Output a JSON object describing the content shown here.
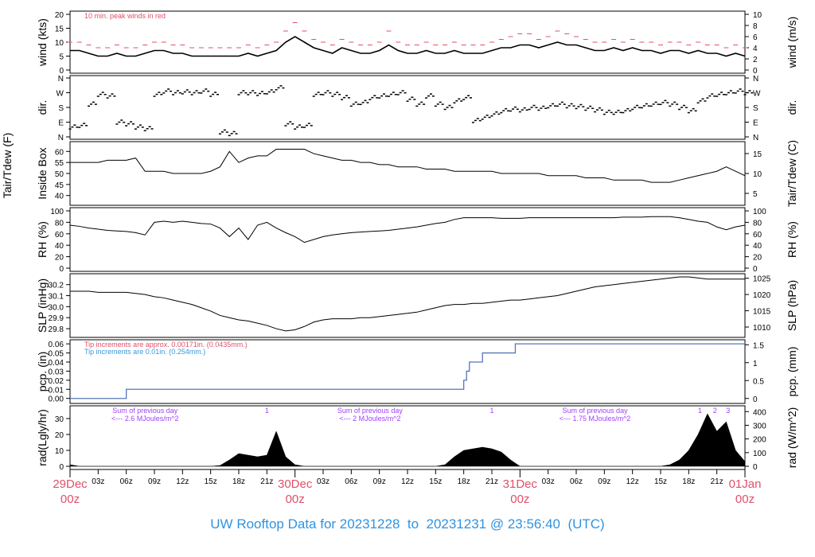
{
  "title": "UW Rooftop Data for 20231228  to  20231231 @ 23:56:40  (UTC)",
  "colors": {
    "title": "#2f93e0",
    "day_label": "#e0506a",
    "peak": "#e0506a",
    "tip_red": "#e0506a",
    "tip_blue": "#3399dd",
    "pcp_line": "#5577bb",
    "rad_note": "#a040ff"
  },
  "chart_data": {
    "type": "line",
    "hours_total": 72,
    "x_hour_ticks": [
      "",
      "03z",
      "06z",
      "09z",
      "12z",
      "15z",
      "18z",
      "21z",
      "",
      "03z",
      "06z",
      "09z",
      "12z",
      "15z",
      "18z",
      "21z",
      "",
      "03z",
      "06z",
      "09z",
      "12z",
      "15z",
      "18z",
      "21z",
      ""
    ],
    "day_labels": [
      {
        "hour": 0,
        "day": "29Dec",
        "time": "00z"
      },
      {
        "hour": 24,
        "day": "30Dec",
        "time": "00z"
      },
      {
        "hour": 48,
        "day": "31Dec",
        "time": "00z"
      },
      {
        "hour": 72,
        "day": "01Jan",
        "time": "00z"
      }
    ],
    "panels": [
      {
        "id": "wind",
        "ylabel": "wind (kts)",
        "ylabel2": "wind (m/s)",
        "ylim": [
          0,
          20
        ],
        "yticks": [
          "0",
          "5",
          "10",
          "15",
          "20"
        ],
        "ylim2": [
          0,
          10
        ],
        "yticks2": [
          "0",
          "2",
          "4",
          "6",
          "8",
          "10"
        ],
        "note": "10 min. peak winds in red",
        "series": [
          {
            "name": "wind",
            "values": [
              7,
              7,
              6,
              5,
              5,
              6,
              5,
              5,
              6,
              7,
              7,
              6,
              6,
              5,
              5,
              5,
              5,
              5,
              5,
              6,
              5,
              6,
              7,
              10,
              12,
              10,
              8,
              7,
              6,
              8,
              7,
              6,
              6,
              7,
              9,
              7,
              6,
              6,
              7,
              6,
              6,
              7,
              6,
              6,
              6,
              7,
              8,
              8,
              9,
              9,
              8,
              9,
              10,
              9,
              9,
              8,
              7,
              7,
              8,
              7,
              8,
              7,
              7,
              6,
              7,
              7,
              6,
              7,
              6,
              6,
              5,
              6,
              5
            ]
          },
          {
            "name": "peak",
            "values": [
              10,
              10,
              9,
              8,
              8,
              9,
              8,
              8,
              9,
              10,
              10,
              9,
              9,
              8,
              8,
              8,
              8,
              8,
              8,
              9,
              8,
              9,
              10,
              14,
              17,
              14,
              11,
              10,
              9,
              11,
              10,
              9,
              9,
              10,
              14,
              10,
              9,
              9,
              10,
              9,
              9,
              10,
              9,
              9,
              9,
              10,
              11,
              12,
              13,
              13,
              11,
              12,
              14,
              13,
              12,
              11,
              10,
              10,
              11,
              10,
              11,
              10,
              10,
              9,
              10,
              10,
              9,
              10,
              9,
              9,
              8,
              9,
              8
            ]
          }
        ]
      },
      {
        "id": "dir",
        "ylabel": "dir.",
        "ylabel2": "dir.",
        "ylim": [
          0,
          360
        ],
        "yticks": [
          "N",
          "E",
          "S",
          "W",
          "N"
        ],
        "yticks2": [
          "N",
          "E",
          "S",
          "W",
          "N"
        ],
        "series": [
          {
            "name": "direction_deg",
            "values": [
              60,
              70,
              200,
              260,
              250,
              90,
              80,
              60,
              50,
              260,
              280,
              270,
              275,
              270,
              280,
              260,
              30,
              20,
              270,
              270,
              265,
              275,
              300,
              80,
              60,
              70,
              260,
              270,
              260,
              240,
              200,
              210,
              240,
              250,
              260,
              270,
              230,
              200,
              250,
              200,
              180,
              220,
              240,
              100,
              120,
              140,
              160,
              170,
              165,
              180,
              175,
              190,
              200,
              190,
              185,
              175,
              165,
              150,
              150,
              160,
              180,
              190,
              200,
              210,
              200,
              180,
              160,
              220,
              250,
              260,
              270,
              280,
              270
            ]
          }
        ]
      },
      {
        "id": "temp",
        "ylabel": "Inside Box",
        "ylabel_outer": "Tair/Tdew (F)",
        "ylabel2": "Tair/Tdew (C)",
        "ylim": [
          37,
          63
        ],
        "yticks": [
          "40",
          "45",
          "50",
          "55",
          "60"
        ],
        "ylim2": [
          2.8,
          17.2
        ],
        "yticks2": [
          "5",
          "10",
          "15"
        ],
        "series": [
          {
            "name": "tair_F",
            "values": [
              55,
              55,
              55,
              55,
              56,
              56,
              56,
              57,
              51,
              51,
              51,
              50,
              50,
              50,
              50,
              51,
              53,
              60,
              55,
              57,
              58,
              58,
              61,
              61,
              61,
              61,
              59,
              58,
              57,
              56,
              56,
              55,
              55,
              54,
              54,
              53,
              53,
              53,
              52,
              52,
              52,
              51,
              51,
              51,
              51,
              51,
              50,
              50,
              50,
              50,
              50,
              49,
              49,
              49,
              49,
              48,
              48,
              48,
              47,
              47,
              47,
              47,
              46,
              46,
              46,
              47,
              48,
              49,
              50,
              51,
              53,
              51,
              49
            ]
          }
        ]
      },
      {
        "id": "rh",
        "ylabel": "RH (%)",
        "ylabel2": "RH (%)",
        "ylim": [
          0,
          100
        ],
        "yticks": [
          "0",
          "20",
          "40",
          "60",
          "80",
          "100"
        ],
        "yticks2": [
          "0",
          "20",
          "40",
          "60",
          "80",
          "100"
        ],
        "series": [
          {
            "name": "rh",
            "values": [
              75,
              73,
              70,
              68,
              66,
              65,
              64,
              62,
              58,
              80,
              82,
              80,
              82,
              80,
              78,
              77,
              70,
              55,
              70,
              50,
              75,
              80,
              70,
              62,
              55,
              45,
              50,
              55,
              58,
              60,
              62,
              63,
              64,
              65,
              66,
              68,
              70,
              72,
              75,
              78,
              80,
              85,
              88,
              88,
              88,
              88,
              87,
              87,
              87,
              88,
              88,
              88,
              88,
              88,
              88,
              88,
              88,
              88,
              88,
              89,
              89,
              89,
              90,
              90,
              90,
              88,
              85,
              82,
              80,
              72,
              67,
              72,
              75
            ]
          }
        ]
      },
      {
        "id": "slp",
        "ylabel": "SLP (inHg)",
        "ylabel2": "SLP (hPa)",
        "ylim": [
          29.75,
          30.27
        ],
        "yticks": [
          "29.8",
          "29.9",
          "30.0",
          "30.1",
          "30.2"
        ],
        "ylim2": [
          1007.8,
          1025.4
        ],
        "yticks2": [
          "1010",
          "1015",
          "1020",
          "1025"
        ],
        "series": [
          {
            "name": "slp_inHg",
            "values": [
              30.14,
              30.14,
              30.14,
              30.13,
              30.13,
              30.13,
              30.13,
              30.12,
              30.11,
              30.09,
              30.08,
              30.06,
              30.04,
              30.02,
              29.99,
              29.96,
              29.92,
              29.9,
              29.88,
              29.87,
              29.85,
              29.83,
              29.8,
              29.78,
              29.79,
              29.82,
              29.86,
              29.88,
              29.89,
              29.89,
              29.89,
              29.9,
              29.9,
              29.91,
              29.92,
              29.93,
              29.94,
              29.95,
              29.97,
              29.99,
              30.01,
              30.02,
              30.02,
              30.03,
              30.03,
              30.04,
              30.05,
              30.06,
              30.06,
              30.07,
              30.08,
              30.09,
              30.1,
              30.12,
              30.14,
              30.16,
              30.18,
              30.19,
              30.2,
              30.21,
              30.22,
              30.23,
              30.24,
              30.25,
              30.26,
              30.27,
              30.27,
              30.26,
              30.25,
              30.25,
              30.25,
              30.25,
              30.25
            ]
          }
        ]
      },
      {
        "id": "pcp",
        "ylabel": "pcp. (in)",
        "ylabel2": "pcp. (mm)",
        "ylim": [
          -0.002,
          0.061
        ],
        "yticks": [
          "0.00",
          "0.01",
          "0.02",
          "0.03",
          "0.04",
          "0.05",
          "0.06"
        ],
        "ylim2": [
          -0.05,
          1.55
        ],
        "yticks2": [
          "0",
          "0.5",
          "1",
          "1.5"
        ],
        "note_red": "Tip increments are approx. 0.00171in. (0.0435mm.)",
        "note_blue": "Tip increments are 0.01in. (0.254mm.)",
        "steps": [
          [
            0,
            0
          ],
          [
            6,
            0.01
          ],
          [
            42,
            0.02
          ],
          [
            42.3,
            0.03
          ],
          [
            42.6,
            0.04
          ],
          [
            44,
            0.05
          ],
          [
            47.5,
            0.06
          ],
          [
            72,
            0.06
          ]
        ]
      },
      {
        "id": "rad",
        "ylabel": "rad(Lgly/hr)",
        "ylabel2": "rad (W/m^2)",
        "ylim": [
          0,
          36
        ],
        "yticks": [
          "0",
          "10",
          "20",
          "30"
        ],
        "ylim2": [
          0,
          419
        ],
        "yticks2": [
          "0",
          "100",
          "200",
          "300",
          "400"
        ],
        "daily_notes": [
          {
            "hour": 6,
            "line1": "Sum of previous day",
            "line2": "<--- 2.6 MJoules/m^2"
          },
          {
            "hour": 30,
            "line1": "Sum of previous day",
            "line2": "<--- 2 MJoules/m^2"
          },
          {
            "hour": 54,
            "line1": "Sum of previous day",
            "line2": "<--- 1.75 MJoules/m^2"
          }
        ],
        "markers": [
          {
            "hour": 21,
            "label": "1"
          },
          {
            "hour": 45,
            "label": "1"
          },
          {
            "hour": 67.2,
            "label": "1"
          },
          {
            "hour": 68.8,
            "label": "2"
          },
          {
            "hour": 70.2,
            "label": "3"
          }
        ],
        "series": [
          {
            "name": "rad_lgly",
            "values": [
              1,
              0,
              0,
              0,
              0,
              0,
              0,
              0,
              0,
              0,
              0,
              0,
              0,
              0,
              0,
              0,
              0.5,
              4,
              8,
              7,
              6,
              7,
              22,
              6,
              1,
              0,
              0,
              0,
              0,
              0,
              0,
              0,
              0,
              0,
              0,
              0,
              0,
              0,
              0,
              0,
              1,
              6,
              10,
              11,
              12,
              11,
              9,
              4,
              0,
              0,
              0,
              0,
              0,
              0,
              0,
              0,
              0,
              0,
              0,
              0,
              0,
              0,
              0,
              0,
              1,
              4,
              10,
              20,
              33,
              22,
              28,
              10,
              3
            ]
          }
        ]
      }
    ]
  }
}
